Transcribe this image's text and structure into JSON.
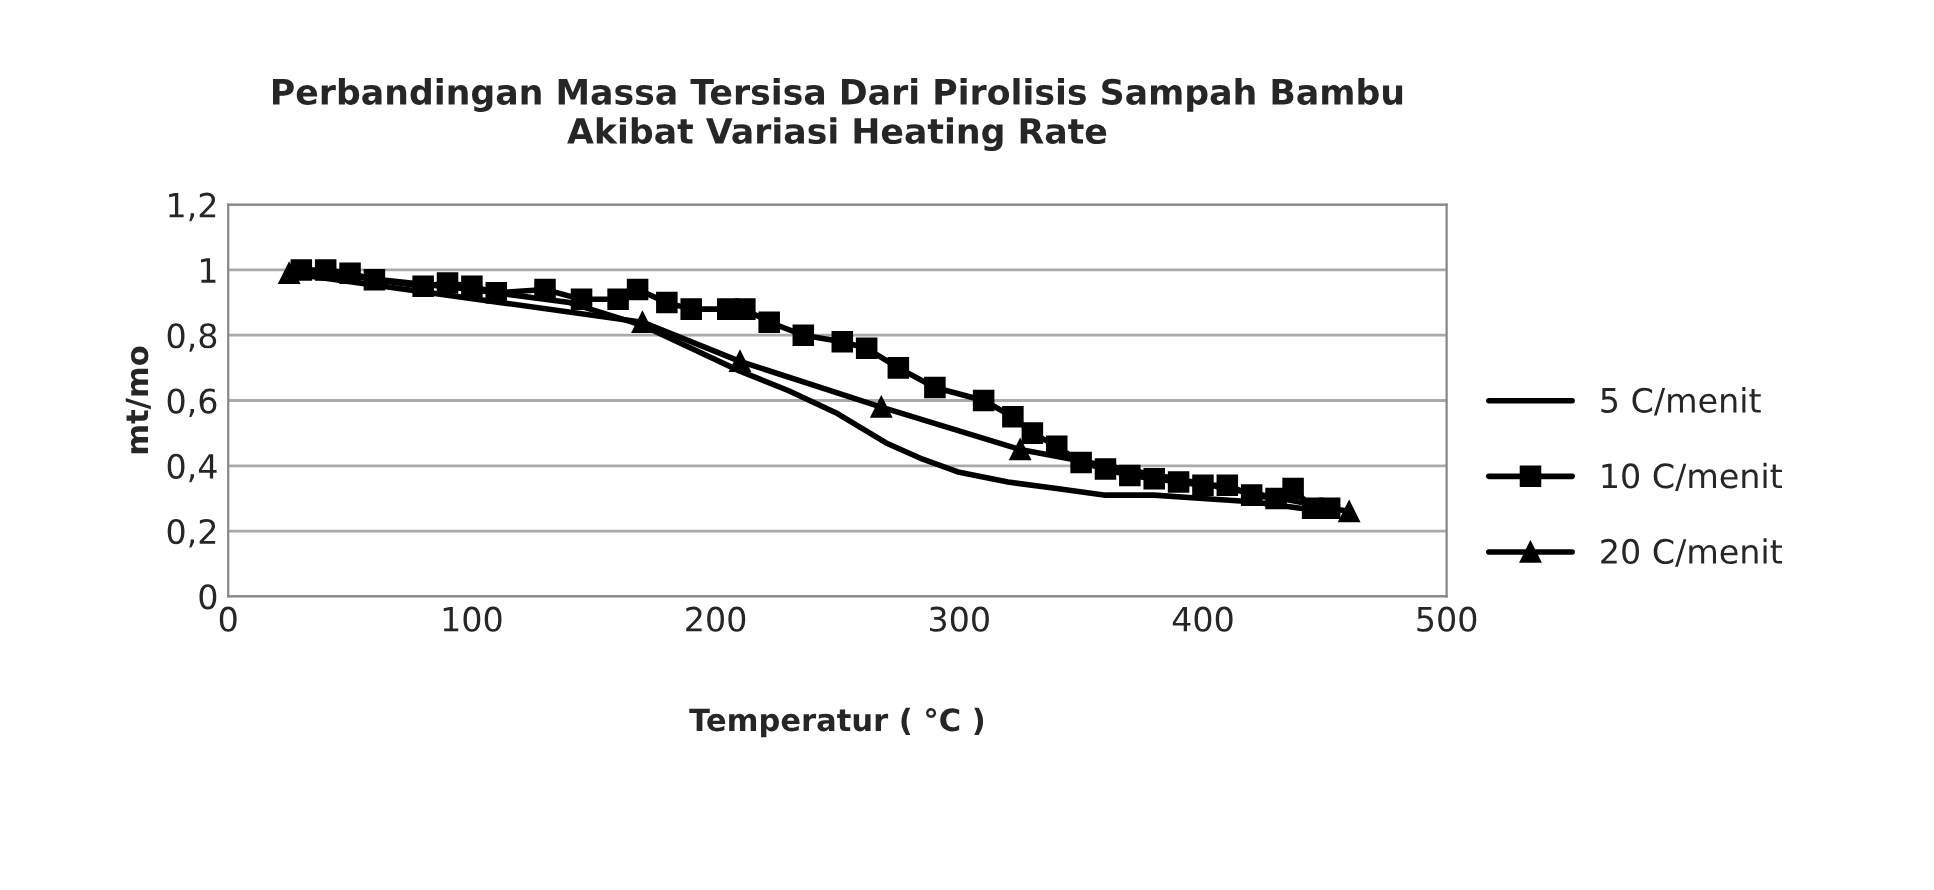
{
  "chart_data": {
    "type": "line",
    "title": "Perbandingan Massa Tersisa Dari Pirolisis Sampah Bambu\nAkibat Variasi Heating Rate",
    "xlabel": "Temperatur ( °C )",
    "ylabel": "mt/mo",
    "xlim": [
      0,
      500
    ],
    "xticks": [
      0,
      100,
      200,
      300,
      400,
      500
    ],
    "ylim": [
      0,
      1.2
    ],
    "yticks": [
      {
        "value": 0,
        "label": "0"
      },
      {
        "value": 0.2,
        "label": "0,2"
      },
      {
        "value": 0.4,
        "label": "0,4"
      },
      {
        "value": 0.6,
        "label": "0,6"
      },
      {
        "value": 0.8,
        "label": "0,8"
      },
      {
        "value": 1,
        "label": "1"
      },
      {
        "value": 1.2,
        "label": "1,2"
      }
    ],
    "grid": "y",
    "legend": "right",
    "series": [
      {
        "name": "5 C/menit",
        "color": "#000000",
        "marker": "none",
        "x": [
          25,
          50,
          100,
          140,
          170,
          190,
          210,
          230,
          250,
          270,
          285,
          300,
          320,
          340,
          360,
          380,
          400,
          420,
          440,
          455
        ],
        "values": [
          1.0,
          0.98,
          0.94,
          0.9,
          0.83,
          0.76,
          0.69,
          0.63,
          0.56,
          0.47,
          0.42,
          0.38,
          0.35,
          0.33,
          0.31,
          0.31,
          0.3,
          0.29,
          0.27,
          0.26
        ]
      },
      {
        "name": "10 C/menit",
        "color": "#000000",
        "marker": "square",
        "x": [
          30,
          40,
          50,
          60,
          80,
          90,
          100,
          110,
          130,
          145,
          160,
          168,
          180,
          190,
          205,
          212,
          222,
          236,
          252,
          262,
          275,
          290,
          310,
          322,
          330,
          340,
          350,
          360,
          370,
          380,
          390,
          400,
          410,
          420,
          430,
          437,
          445,
          452
        ],
        "values": [
          1.0,
          1.0,
          0.99,
          0.97,
          0.95,
          0.96,
          0.95,
          0.93,
          0.94,
          0.91,
          0.91,
          0.94,
          0.9,
          0.88,
          0.88,
          0.88,
          0.84,
          0.8,
          0.78,
          0.76,
          0.7,
          0.64,
          0.6,
          0.55,
          0.5,
          0.46,
          0.41,
          0.39,
          0.37,
          0.36,
          0.35,
          0.34,
          0.34,
          0.31,
          0.3,
          0.33,
          0.27,
          0.27
        ]
      },
      {
        "name": "20 C/menit",
        "color": "#000000",
        "marker": "triangle",
        "x": [
          25,
          170,
          210,
          268,
          325,
          460
        ],
        "values": [
          0.99,
          0.84,
          0.72,
          0.58,
          0.45,
          0.26
        ]
      }
    ]
  }
}
